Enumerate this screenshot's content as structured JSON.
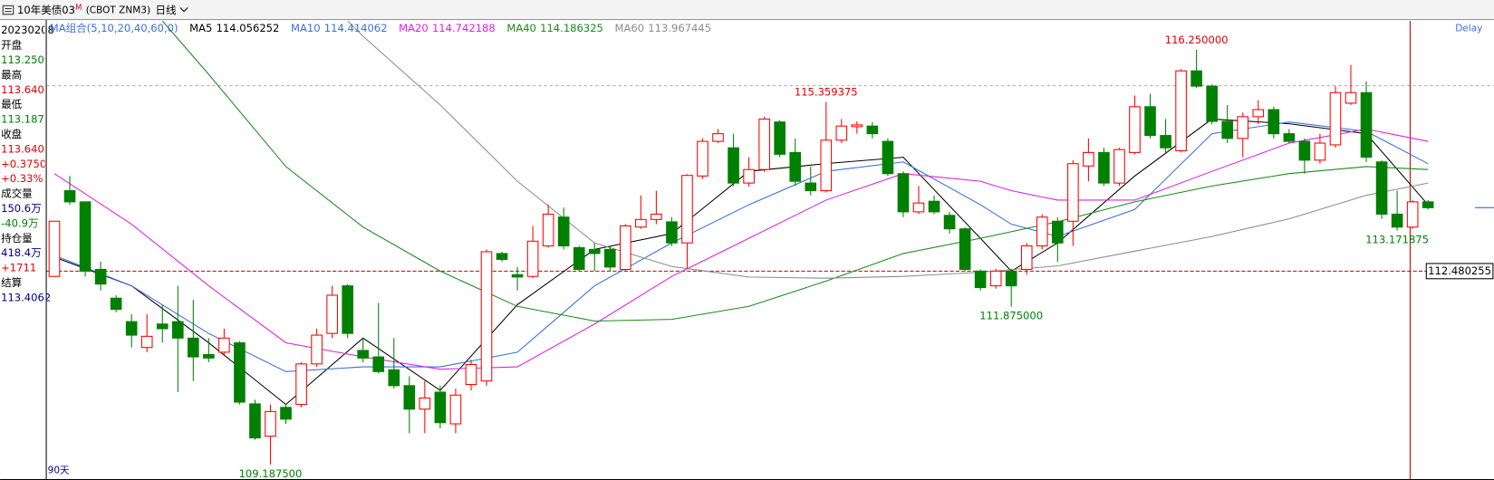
{
  "header": {
    "symbol": "10年美债03",
    "badge": "M",
    "code": "(CBOT ZNM3)",
    "period": "日线"
  },
  "info_panel": {
    "items": [
      {
        "text": "20230208",
        "color": "#000000"
      },
      {
        "text": "开盘",
        "color": "#000000"
      },
      {
        "text": "113.250",
        "color": "#008000"
      },
      {
        "text": "最高",
        "color": "#000000"
      },
      {
        "text": "113.640",
        "color": "#e00000"
      },
      {
        "text": "最低",
        "color": "#000000"
      },
      {
        "text": "113.187",
        "color": "#008000"
      },
      {
        "text": "收盘",
        "color": "#000000"
      },
      {
        "text": "113.640",
        "color": "#e00000"
      },
      {
        "text": "+0.3750",
        "color": "#e00000"
      },
      {
        "text": "+0.33%",
        "color": "#e00000"
      },
      {
        "text": "成交量",
        "color": "#000000"
      },
      {
        "text": "150.6万",
        "color": "#000080"
      },
      {
        "text": "-40.9万",
        "color": "#008000"
      },
      {
        "text": "持仓量",
        "color": "#000000"
      },
      {
        "text": "418.4万",
        "color": "#000080"
      },
      {
        "text": "+1711",
        "color": "#e00000"
      },
      {
        "text": "结算",
        "color": "#000000"
      },
      {
        "text": "113.4062",
        "color": "#000080"
      }
    ]
  },
  "chart_data": {
    "type": "candlestick",
    "indicator": "MA组合(5,10,20,40,60,0)",
    "status": "Delay",
    "range_label": "90天",
    "ylim": [
      108.94,
      116.74
    ],
    "up_color": "#ff0000",
    "down_color": "#008000",
    "open": [
      112.39,
      113.85,
      113.66,
      112.51,
      112.02,
      111.62,
      111.18,
      111.58,
      111.62,
      111.34,
      111.06,
      111.1,
      111.26,
      110.22,
      109.67,
      110.16,
      110.21,
      110.9,
      111.42,
      112.23,
      111.13,
      111.02,
      110.8,
      110.53,
      110.13,
      110.42,
      109.88,
      110.55,
      110.61,
      112.78,
      112.42,
      112.39,
      112.91,
      113.4,
      112.88,
      112.85,
      112.85,
      112.51,
      113.23,
      113.36,
      113.32,
      112.96,
      114.1,
      114.69,
      114.58,
      113.98,
      114.21,
      115.02,
      114.5,
      113.98,
      113.85,
      114.71,
      114.94,
      114.95,
      114.69,
      114.14,
      113.49,
      113.67,
      113.43,
      113.2,
      112.48,
      112.23,
      112.48,
      112.51,
      112.91,
      113.33,
      113.33,
      114.27,
      114.5,
      113.98,
      114.5,
      115.28,
      114.79,
      114.53,
      115.89,
      115.63,
      115.03,
      114.74,
      115.11,
      115.23,
      114.82,
      114.69,
      114.37,
      114.63,
      115.34,
      115.52,
      114.34,
      113.45,
      113.23,
      113.66
    ],
    "high": [
      113.33,
      114.1,
      113.66,
      112.64,
      112.07,
      111.75,
      111.75,
      111.91,
      112.23,
      111.99,
      111.34,
      111.5,
      111.29,
      110.29,
      110.21,
      110.21,
      110.93,
      111.5,
      112.23,
      112.26,
      111.34,
      111.94,
      111.34,
      110.69,
      110.61,
      110.53,
      110.48,
      110.97,
      112.85,
      112.81,
      112.55,
      113.25,
      113.61,
      113.56,
      112.91,
      112.96,
      112.91,
      113.28,
      113.77,
      113.85,
      113.4,
      114.13,
      114.74,
      114.9,
      114.82,
      114.42,
      115.11,
      115.05,
      114.74,
      114.26,
      115.359375,
      115.07,
      115.03,
      115.02,
      114.74,
      114.18,
      113.93,
      113.77,
      113.49,
      113.23,
      112.51,
      112.52,
      112.52,
      112.96,
      113.45,
      113.4,
      114.37,
      114.74,
      114.58,
      114.58,
      115.47,
      115.5,
      115.07,
      115.92,
      116.25,
      115.66,
      115.31,
      115.18,
      115.39,
      115.28,
      114.9,
      114.74,
      114.82,
      115.63,
      115.99,
      115.71,
      114.37,
      113.85,
      113.69,
      113.69
    ],
    "low": [
      112.39,
      113.61,
      112.39,
      112.15,
      111.78,
      111.18,
      111.1,
      111.26,
      110.42,
      110.61,
      110.93,
      111.06,
      110.21,
      109.61,
      109.1875,
      109.88,
      110.16,
      110.85,
      111.34,
      111.34,
      110.93,
      110.74,
      110.48,
      109.72,
      109.72,
      109.8,
      109.72,
      110.45,
      110.53,
      112.64,
      112.15,
      112.36,
      112.88,
      112.85,
      112.48,
      112.48,
      112.48,
      112.48,
      113.2,
      113.28,
      112.91,
      112.52,
      114.05,
      114.66,
      113.93,
      113.92,
      114.17,
      114.42,
      113.93,
      113.77,
      113.82,
      114.66,
      114.82,
      114.74,
      114.1,
      113.4,
      113.45,
      113.45,
      113.12,
      112.48,
      112.15,
      112.18,
      111.875,
      112.42,
      112.85,
      112.64,
      112.91,
      114.01,
      113.93,
      113.93,
      114.47,
      114.74,
      114.5,
      114.5,
      115.6,
      114.98,
      114.66,
      114.42,
      114.98,
      114.74,
      114.66,
      114.14,
      114.31,
      114.58,
      115.31,
      114.34,
      113.37,
      113.171875,
      113.2,
      113.53
    ],
    "close": [
      113.33,
      113.66,
      112.48,
      112.26,
      111.83,
      111.39,
      111.37,
      111.5,
      111.34,
      111.02,
      111.0,
      111.34,
      110.25,
      109.64,
      110.09,
      109.96,
      110.9,
      111.39,
      112.07,
      111.42,
      111.0,
      110.77,
      110.53,
      110.13,
      110.32,
      109.9,
      110.37,
      110.89,
      112.81,
      112.68,
      112.38,
      112.99,
      113.45,
      112.91,
      112.51,
      112.78,
      112.55,
      113.25,
      113.36,
      113.45,
      112.96,
      114.11,
      114.69,
      114.82,
      113.98,
      114.21,
      115.07,
      114.47,
      114.01,
      113.85,
      114.71,
      114.95,
      114.97,
      114.82,
      114.14,
      113.49,
      113.64,
      113.49,
      113.2,
      112.51,
      112.2,
      112.48,
      112.23,
      112.91,
      113.4,
      112.96,
      114.31,
      114.5,
      113.98,
      114.55,
      115.28,
      114.79,
      114.58,
      115.89,
      115.63,
      115.03,
      114.74,
      115.11,
      115.23,
      114.82,
      114.69,
      114.37,
      114.66,
      115.52,
      115.52,
      114.42,
      113.45,
      113.23,
      113.66,
      113.56
    ],
    "series": [
      {
        "name": "MA5",
        "latest": 114.056252,
        "color": "#000000",
        "x": [
          0,
          5,
          10,
          15,
          20,
          25,
          30,
          35,
          40,
          45,
          50,
          55,
          60,
          62,
          65,
          70,
          75,
          80,
          85,
          89
        ],
        "values": [
          112.72,
          112.23,
          111.26,
          110.21,
          111.34,
          110.45,
          111.91,
          112.85,
          113.12,
          114.18,
          114.31,
          114.42,
          113.04,
          112.48,
          112.96,
          114.1,
          115.07,
          114.99,
          114.82,
          113.61
        ]
      },
      {
        "name": "MA10",
        "latest": 114.414062,
        "color": "#3a6fd8",
        "x": [
          0,
          5,
          10,
          15,
          20,
          25,
          30,
          35,
          40,
          45,
          50,
          55,
          60,
          62,
          65,
          70,
          75,
          80,
          85,
          89
        ],
        "values": [
          112.75,
          112.23,
          111.42,
          110.77,
          110.85,
          110.85,
          111.1,
          112.23,
          112.96,
          113.61,
          114.18,
          114.34,
          113.61,
          113.28,
          113.07,
          113.53,
          114.82,
          115.02,
          114.86,
          114.31
        ]
      },
      {
        "name": "MA20",
        "latest": 114.742188,
        "color": "#e020e0",
        "x": [
          0,
          5,
          10,
          15,
          20,
          25,
          30,
          35,
          40,
          45,
          50,
          55,
          60,
          62,
          65,
          70,
          75,
          80,
          85,
          89
        ],
        "values": [
          114.14,
          113.28,
          112.23,
          111.26,
          111.02,
          110.81,
          110.85,
          111.58,
          112.39,
          113.04,
          113.69,
          114.14,
          114.01,
          113.85,
          113.69,
          113.69,
          114.18,
          114.66,
          114.9,
          114.69
        ]
      },
      {
        "name": "MA40",
        "latest": 114.186325,
        "color": "#1a8a1a",
        "x": [
          7,
          10,
          15,
          20,
          25,
          30,
          35,
          40,
          45,
          50,
          55,
          60,
          65,
          70,
          75,
          80,
          85,
          89
        ],
        "values": [
          116.74,
          115.83,
          114.26,
          113.23,
          112.48,
          111.88,
          111.63,
          111.66,
          111.88,
          112.31,
          112.78,
          113.04,
          113.32,
          113.66,
          113.93,
          114.14,
          114.26,
          114.21
        ]
      },
      {
        "name": "MA60",
        "latest": 113.967445,
        "color": "#8c8c8c",
        "x": [
          19,
          20,
          25,
          30,
          35,
          40,
          45,
          50,
          55,
          60,
          65,
          70,
          75,
          80,
          85,
          89
        ],
        "values": [
          116.74,
          116.48,
          115.31,
          114.01,
          112.96,
          112.56,
          112.38,
          112.36,
          112.39,
          112.46,
          112.57,
          112.82,
          113.07,
          113.37,
          113.77,
          113.98
        ]
      }
    ],
    "extremes": [
      {
        "index": 74,
        "value": 116.25,
        "label": "116.250000"
      },
      {
        "index": 50,
        "value": 115.359375,
        "label": "115.359375"
      },
      {
        "index": 62,
        "value": 111.875,
        "label": "111.875000"
      },
      {
        "index": 14,
        "value": 109.1875,
        "label": "109.187500"
      },
      {
        "index": 87,
        "value": 113.171875,
        "label": "113.171875"
      }
    ],
    "reference_line": {
      "value": 112.480255,
      "color": "#c00000"
    }
  }
}
